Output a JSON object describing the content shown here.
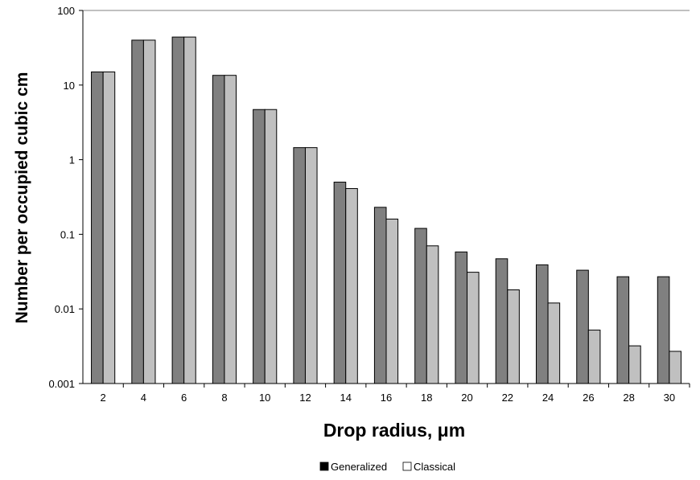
{
  "chart_data": {
    "type": "bar",
    "scale": "log",
    "ylim": [
      0.001,
      100
    ],
    "yticks": [
      "0.001",
      "0.01",
      "0.1",
      "1",
      "10",
      "100"
    ],
    "categories": [
      "2",
      "4",
      "6",
      "8",
      "10",
      "12",
      "14",
      "16",
      "18",
      "20",
      "22",
      "24",
      "26",
      "28",
      "30"
    ],
    "series": [
      {
        "name": "Generalized",
        "color": "#808080",
        "values": [
          15,
          40,
          44,
          13.5,
          4.7,
          1.45,
          0.5,
          0.23,
          0.12,
          0.058,
          0.047,
          0.039,
          0.033,
          0.027,
          0.027
        ]
      },
      {
        "name": "Classical",
        "color": "#c0c0c0",
        "values": [
          15,
          40,
          44,
          13.5,
          4.7,
          1.45,
          0.41,
          0.16,
          0.07,
          0.031,
          0.018,
          0.012,
          0.0052,
          0.0032,
          0.0027
        ]
      }
    ],
    "xlabel": "Drop radius, μm",
    "ylabel": "Number per occupied cubic cm",
    "grid": "horizontal at top only",
    "legend": "bottom-center"
  }
}
